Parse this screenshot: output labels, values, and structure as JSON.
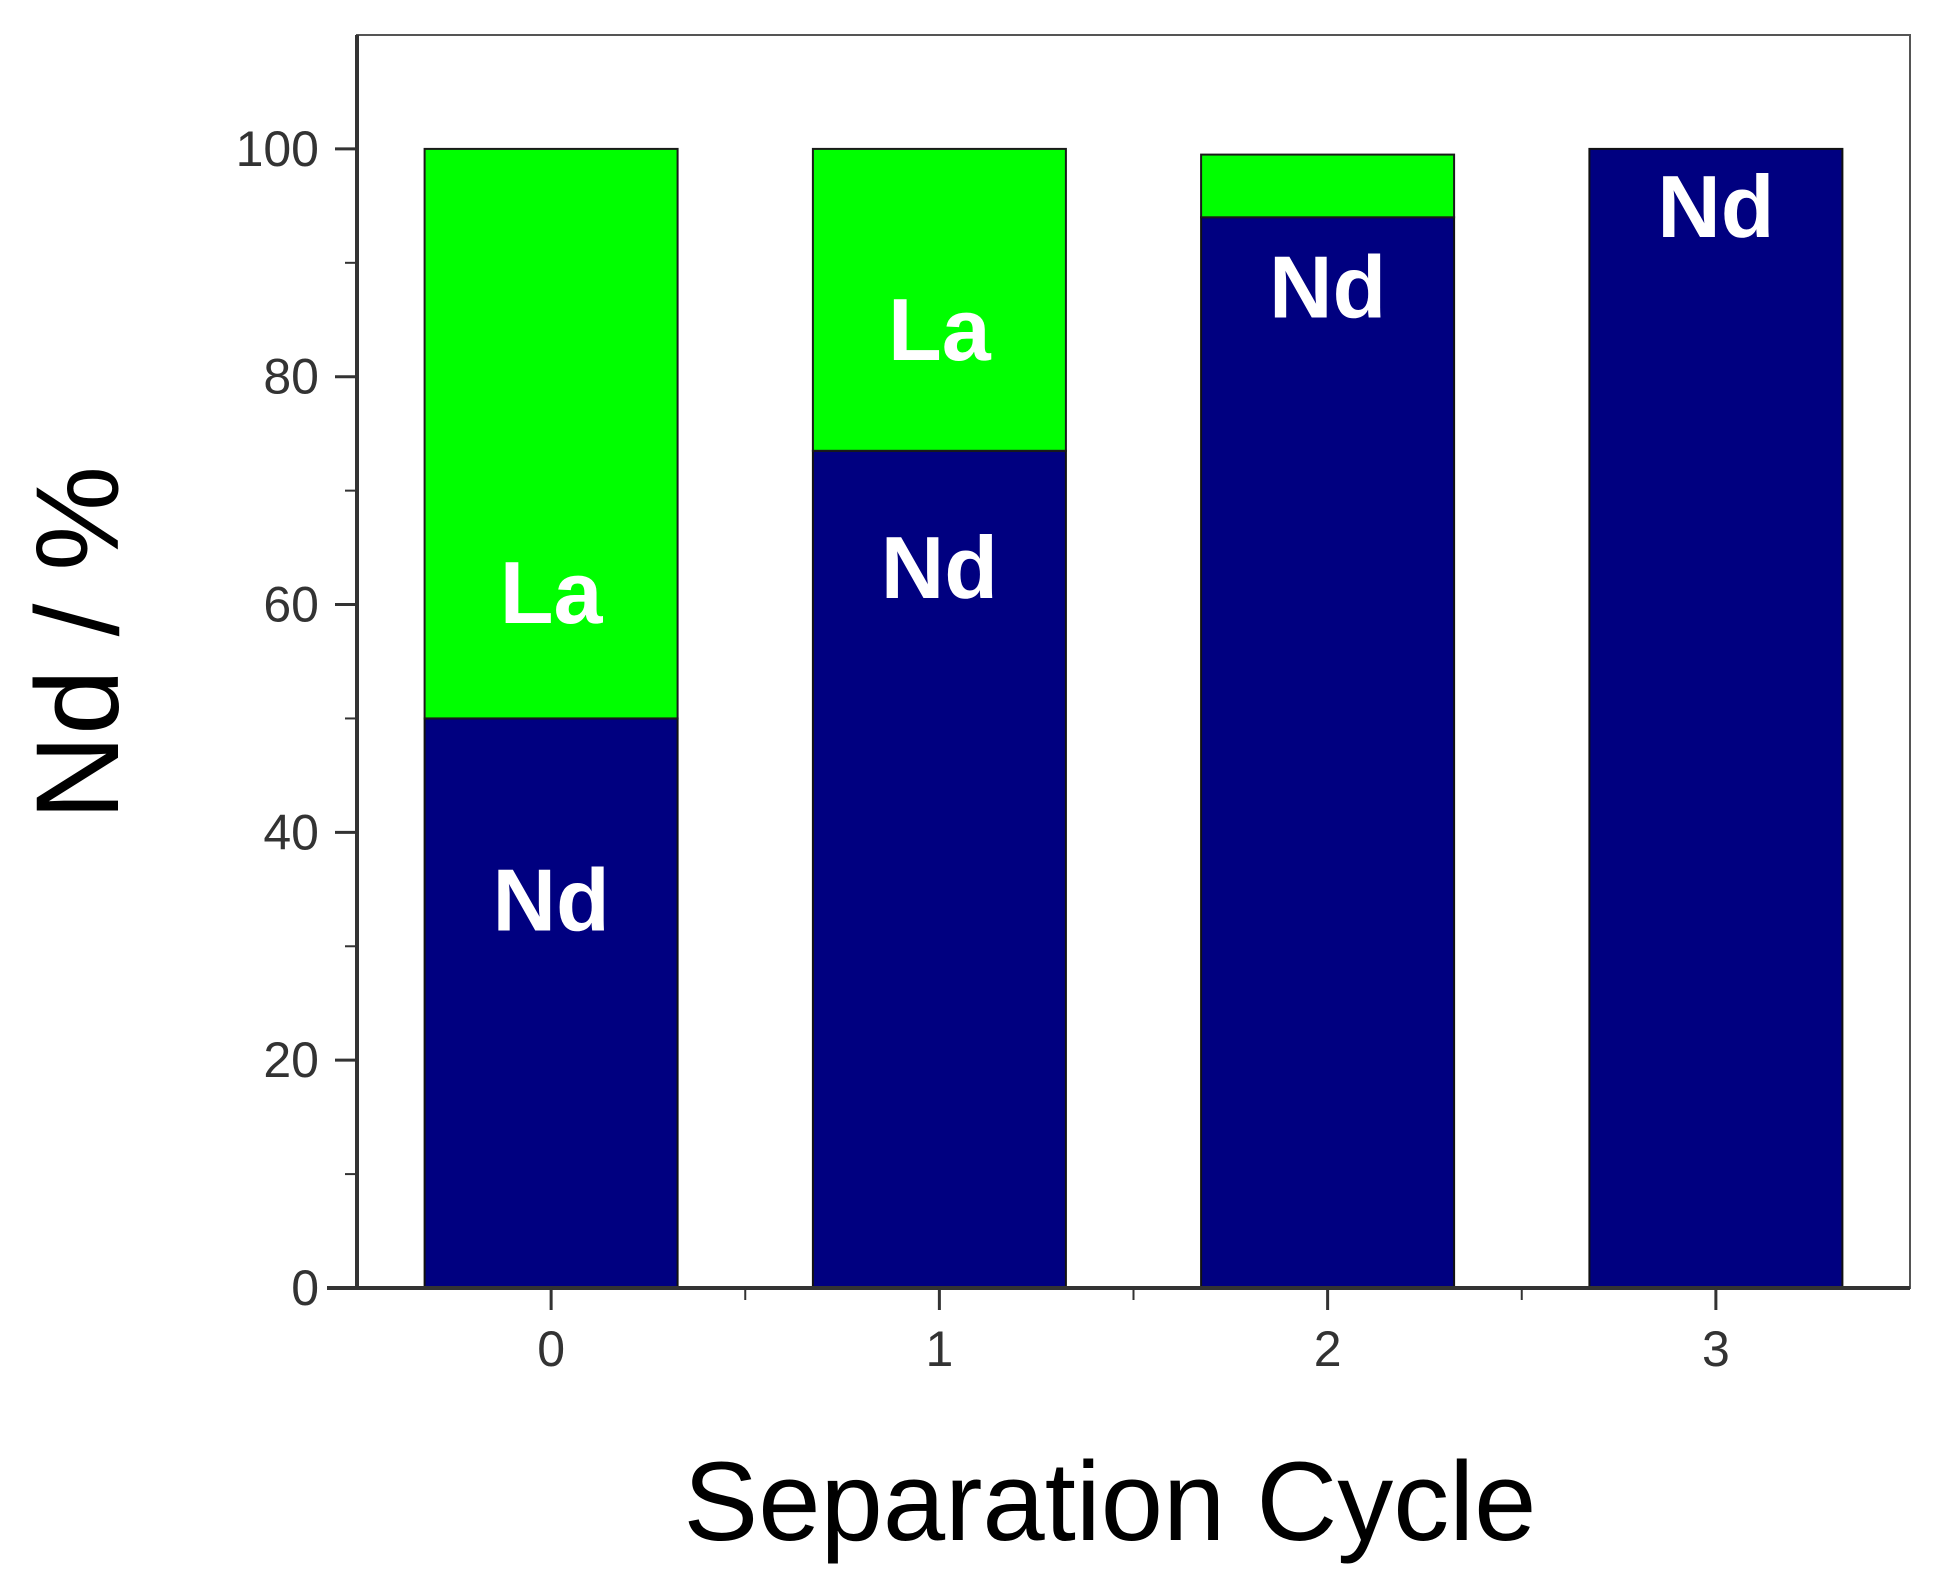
{
  "chart_data": {
    "type": "bar",
    "stacked": true,
    "title": "",
    "xlabel": "Separation Cycle",
    "ylabel": "Nd / %",
    "categories": [
      "0",
      "1",
      "2",
      "3"
    ],
    "ylim": [
      0,
      110
    ],
    "yticks": [
      0,
      20,
      40,
      60,
      80,
      100
    ],
    "grid": false,
    "legend": "none",
    "series": [
      {
        "name": "Nd",
        "color": "#000080",
        "values": [
          50,
          73.5,
          94,
          100
        ],
        "labels": [
          "Nd",
          "Nd",
          "Nd",
          "Nd"
        ]
      },
      {
        "name": "La",
        "color": "#00ff00",
        "values": [
          50,
          26.5,
          5.5,
          0
        ],
        "labels": [
          "La",
          "La",
          "",
          ""
        ]
      }
    ]
  }
}
